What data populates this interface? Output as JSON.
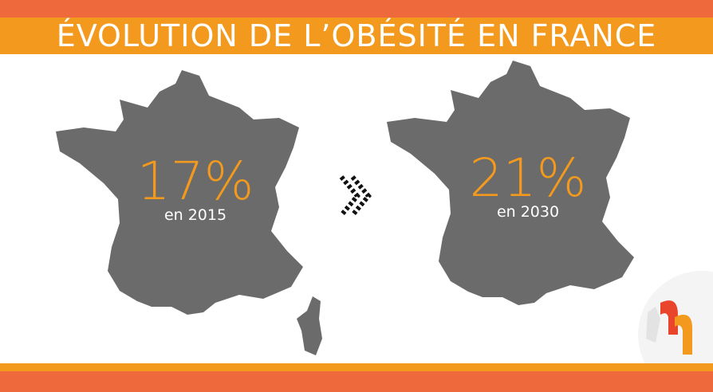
{
  "header": {
    "title": "ÉVOLUTION DE L’OBÉSITÉ EN FRANCE"
  },
  "panels": [
    {
      "value": "17%",
      "caption": "en 2015"
    },
    {
      "value": "21%",
      "caption": "en 2030"
    }
  ]
}
